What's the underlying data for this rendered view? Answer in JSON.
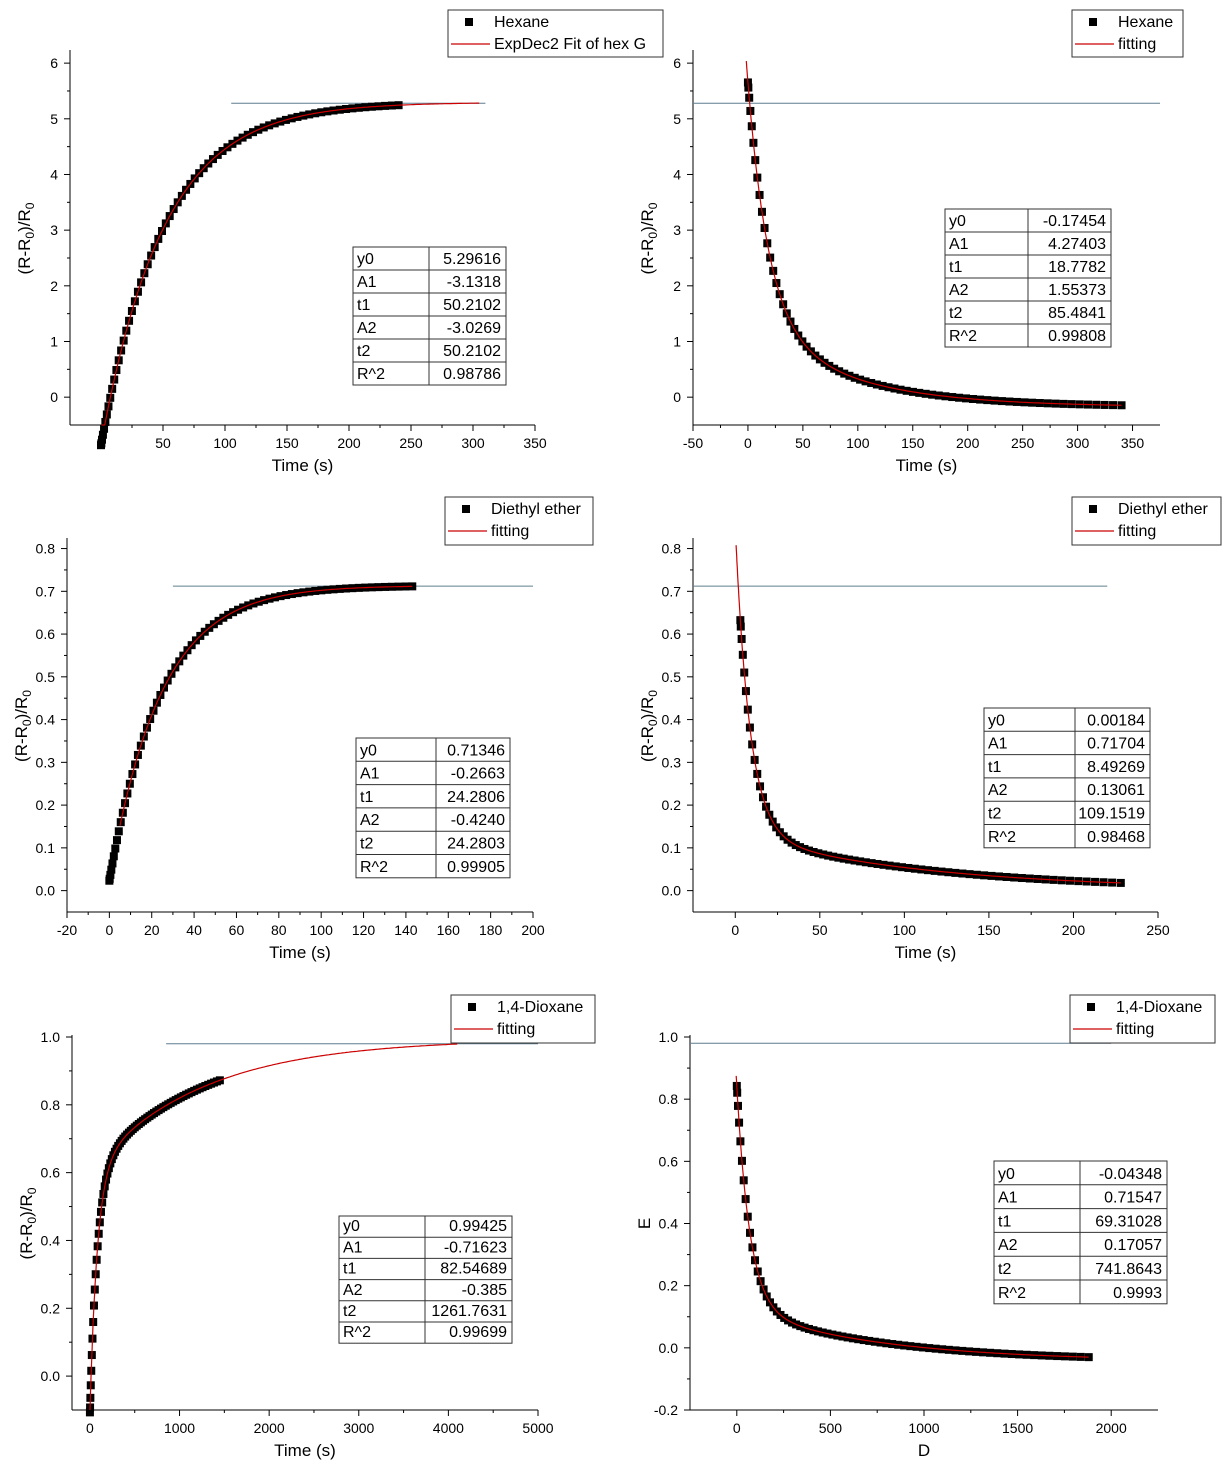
{
  "colors": {
    "data": "#000000",
    "fit": "#cc0000",
    "reference_line": "#5f7f8f",
    "axis": "#000000"
  },
  "chart_data": [
    {
      "id": "hexane-rise",
      "type": "scatter",
      "xlabel": "Time (s)",
      "ylabel_base": "(R-R",
      "ylabel_sub": "0",
      "ylabel_tail": ")/R",
      "ylabel_sub2": "0",
      "xlim": [
        -25,
        350
      ],
      "ylim": [
        -0.5,
        6.2
      ],
      "xticks": [
        0,
        50,
        100,
        150,
        200,
        250,
        300,
        350
      ],
      "yticks": [
        0,
        1,
        2,
        3,
        4,
        5,
        6
      ],
      "ref_y": 5.28,
      "ref_x": [
        105,
        310
      ],
      "legend": [
        {
          "kind": "marker",
          "label": "Hexane"
        },
        {
          "kind": "line",
          "label": "ExpDec2 Fit of hex G"
        }
      ],
      "fit": {
        "model": "expdec2",
        "y0": 5.29616,
        "A1": -3.1318,
        "t1": 50.2102,
        "A2": -3.0269,
        "t2": 50.2102,
        "x_from": 0.5,
        "x_to": 305
      },
      "data_range": [
        0,
        240
      ],
      "table": [
        {
          "name": "y0",
          "value": "5.29616"
        },
        {
          "name": "A1",
          "value": "-3.1318"
        },
        {
          "name": "t1",
          "value": "50.2102"
        },
        {
          "name": "A2",
          "value": "-3.0269"
        },
        {
          "name": "t2",
          "value": "50.2102"
        },
        {
          "name": "R^2",
          "value": "0.98786"
        }
      ]
    },
    {
      "id": "hexane-decay",
      "type": "scatter",
      "xlabel": "Time (s)",
      "ylabel_base": "(R-R",
      "ylabel_sub": "0",
      "ylabel_tail": ")/R",
      "ylabel_sub2": "0",
      "xlim": [
        -50,
        375
      ],
      "ylim": [
        -0.5,
        6.2
      ],
      "xticks": [
        -50,
        0,
        50,
        100,
        150,
        200,
        250,
        300,
        350
      ],
      "yticks": [
        0,
        1,
        2,
        3,
        4,
        5,
        6
      ],
      "ref_y": 5.28,
      "ref_x": [
        -50,
        375
      ],
      "legend": [
        {
          "kind": "marker",
          "label": "Hexane"
        },
        {
          "kind": "line",
          "label": "fitting"
        }
      ],
      "fit": {
        "model": "expdec2",
        "y0": -0.17454,
        "A1": 4.27403,
        "t1": 18.7782,
        "A2": 1.55373,
        "t2": 85.4841,
        "x_from": -1.5,
        "x_to": 340
      },
      "data_range": [
        0,
        340
      ],
      "table": [
        {
          "name": "y0",
          "value": "-0.17454"
        },
        {
          "name": "A1",
          "value": "4.27403"
        },
        {
          "name": "t1",
          "value": "18.7782"
        },
        {
          "name": "A2",
          "value": "1.55373"
        },
        {
          "name": "t2",
          "value": "85.4841"
        },
        {
          "name": "R^2",
          "value": "0.99808"
        }
      ]
    },
    {
      "id": "ether-rise",
      "type": "scatter",
      "xlabel": "Time (s)",
      "ylabel_base": "(R-R",
      "ylabel_sub": "0",
      "ylabel_tail": ")/R",
      "ylabel_sub2": "0",
      "xlim": [
        -20,
        200
      ],
      "ylim": [
        -0.05,
        0.82
      ],
      "xticks": [
        -20,
        0,
        20,
        40,
        60,
        80,
        100,
        120,
        140,
        160,
        180,
        200
      ],
      "yticks": [
        0.0,
        0.1,
        0.2,
        0.3,
        0.4,
        0.5,
        0.6,
        0.7,
        0.8
      ],
      "ref_y": 0.712,
      "ref_x": [
        30,
        200
      ],
      "legend": [
        {
          "kind": "marker",
          "label": "Diethyl ether"
        },
        {
          "kind": "line",
          "label": "fitting"
        }
      ],
      "fit": {
        "model": "expdec2",
        "y0": 0.71346,
        "A1": -0.2663,
        "t1": 24.2806,
        "A2": -0.424,
        "t2": 24.2803,
        "x_from": 5,
        "x_to": 143
      },
      "data_range": [
        0,
        143
      ],
      "table": [
        {
          "name": "y0",
          "value": "0.71346"
        },
        {
          "name": "A1",
          "value": "-0.2663"
        },
        {
          "name": "t1",
          "value": "24.2806"
        },
        {
          "name": "A2",
          "value": "-0.4240"
        },
        {
          "name": "t2",
          "value": "24.2803"
        },
        {
          "name": "R^2",
          "value": "0.99905"
        }
      ]
    },
    {
      "id": "ether-decay",
      "type": "scatter",
      "xlabel": "Time (s)",
      "ylabel_base": "(R-R",
      "ylabel_sub": "0",
      "ylabel_tail": ")/R",
      "ylabel_sub2": "0",
      "xlim": [
        -25,
        250
      ],
      "ylim": [
        -0.05,
        0.82
      ],
      "xticks": [
        0,
        50,
        100,
        150,
        200,
        250
      ],
      "yticks": [
        0.0,
        0.1,
        0.2,
        0.3,
        0.4,
        0.5,
        0.6,
        0.7,
        0.8
      ],
      "ref_y": 0.712,
      "ref_x": [
        -25,
        220
      ],
      "legend": [
        {
          "kind": "marker",
          "label": "Diethyl ether"
        },
        {
          "kind": "line",
          "label": "fitting"
        }
      ],
      "fit": {
        "model": "expdec2",
        "y0": 0.00184,
        "A1": 0.71704,
        "t1": 8.49269,
        "A2": 0.13061,
        "t2": 109.1519,
        "x_from": 0.5,
        "x_to": 228
      },
      "data_range": [
        3,
        228
      ],
      "table": [
        {
          "name": "y0",
          "value": "0.00184"
        },
        {
          "name": "A1",
          "value": "0.71704"
        },
        {
          "name": "t1",
          "value": "8.49269"
        },
        {
          "name": "A2",
          "value": "0.13061"
        },
        {
          "name": "t2",
          "value": "109.1519"
        },
        {
          "name": "R^2",
          "value": "0.98468"
        }
      ]
    },
    {
      "id": "dioxane-rise",
      "type": "scatter",
      "xlabel": "Time (s)",
      "ylabel_base": "(R-R",
      "ylabel_sub": "0",
      "ylabel_tail": ")/R",
      "ylabel_sub2": "0",
      "xlim": [
        -200,
        5000
      ],
      "ylim": [
        -0.1,
        1.0
      ],
      "xticks": [
        0,
        1000,
        2000,
        3000,
        4000,
        5000
      ],
      "yticks": [
        0.0,
        0.2,
        0.4,
        0.6,
        0.8,
        1.0
      ],
      "ref_y": 0.98,
      "ref_x": [
        850,
        5000
      ],
      "legend": [
        {
          "kind": "marker",
          "label": "1,4-Dioxane"
        },
        {
          "kind": "line",
          "label": "fitting"
        }
      ],
      "fit": {
        "model": "expdec2",
        "y0": 0.99425,
        "A1": -0.71623,
        "t1": 82.54689,
        "A2": -0.385,
        "t2": 1261.7631,
        "x_from": 0,
        "x_to": 4100
      },
      "data_range": [
        0,
        1450
      ],
      "table": [
        {
          "name": "y0",
          "value": "0.99425"
        },
        {
          "name": "A1",
          "value": "-0.71623"
        },
        {
          "name": "t1",
          "value": "82.54689"
        },
        {
          "name": "A2",
          "value": "-0.385"
        },
        {
          "name": "t2",
          "value": "1261.7631"
        },
        {
          "name": "R^2",
          "value": "0.99699"
        }
      ]
    },
    {
      "id": "dioxane-decay",
      "type": "scatter",
      "xlabel": "D",
      "ylabel_plain": "E",
      "xlim": [
        -250,
        2250
      ],
      "ylim": [
        -0.2,
        1.0
      ],
      "xticks": [
        0,
        500,
        1000,
        1500,
        2000
      ],
      "yticks": [
        -0.2,
        0.0,
        0.2,
        0.4,
        0.6,
        0.8,
        1.0
      ],
      "ref_y": 0.98,
      "ref_x": [
        -250,
        2000
      ],
      "legend": [
        {
          "kind": "marker",
          "label": "1,4-Dioxane"
        },
        {
          "kind": "line",
          "label": "fitting"
        }
      ],
      "fit": {
        "model": "expdec2",
        "y0": -0.04348,
        "A1": 0.71547,
        "t1": 69.31028,
        "A2": 0.17057,
        "t2": 741.8643,
        "x_from": -3,
        "x_to": 1880
      },
      "data_range": [
        0,
        1880
      ],
      "table": [
        {
          "name": "y0",
          "value": "-0.04348"
        },
        {
          "name": "A1",
          "value": "0.71547"
        },
        {
          "name": "t1",
          "value": "69.31028"
        },
        {
          "name": "A2",
          "value": "0.17057"
        },
        {
          "name": "t2",
          "value": "741.8643"
        },
        {
          "name": "R^2",
          "value": "0.9993"
        }
      ]
    }
  ]
}
